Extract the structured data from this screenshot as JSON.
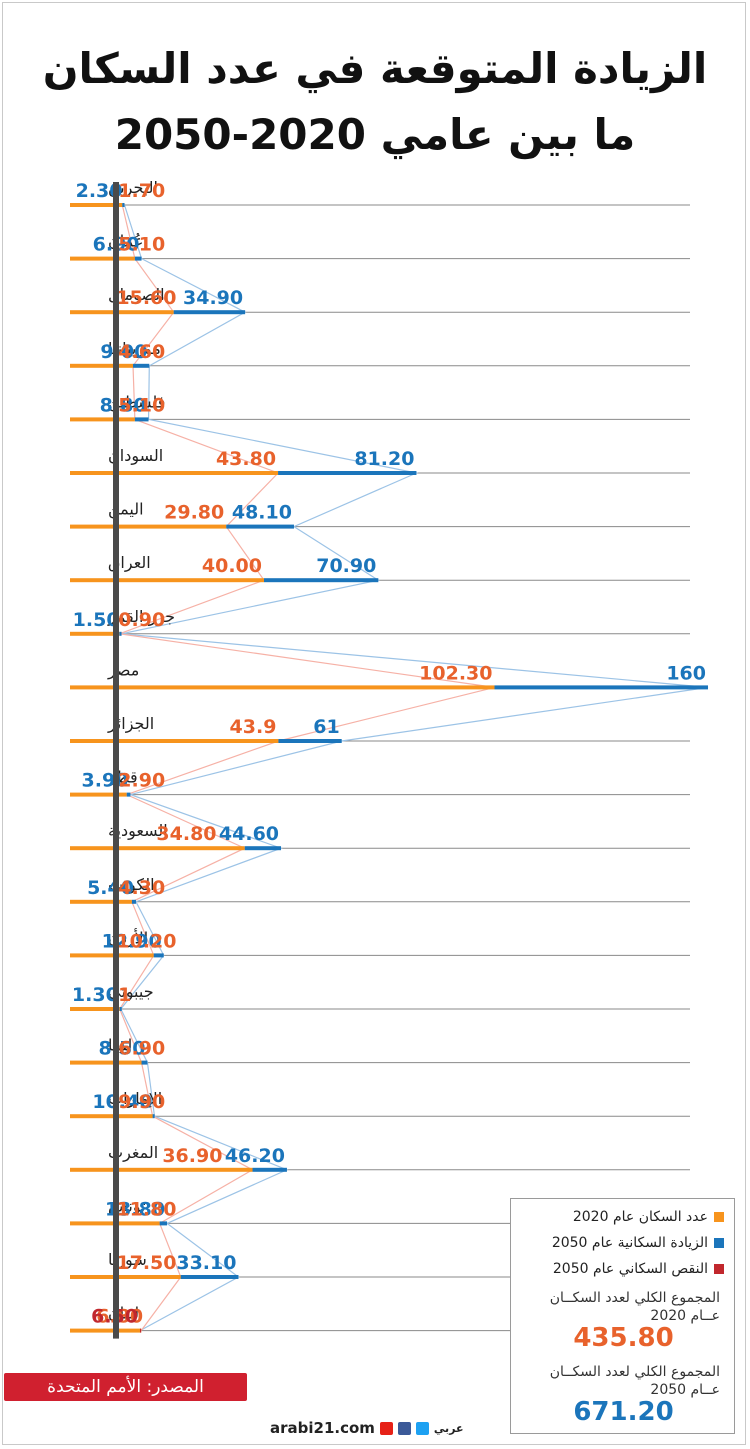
{
  "title": {
    "line1": "الزيادة المتوقعة في عدد السكان",
    "line2": "ما بين عامي 2020-2050"
  },
  "colors": {
    "pop2020": "#f7941d",
    "inc2050": "#1b75bb",
    "dec2050": "#c1272d",
    "label2020": "#e8622c"
  },
  "chart_data": {
    "type": "bar",
    "categories": [
      "البحرين",
      "عُمان",
      "الصومال",
      "موريتانيا",
      "فلسطين",
      "السودان",
      "اليمن",
      "العراق",
      "جزر القمر",
      "مصر",
      "الجزائر",
      "قطر",
      "السعودية",
      "الكويت",
      "الأردن",
      "جيبوتي",
      "ليبيا",
      "الإمارات",
      "المغرب",
      "تونس",
      "سوريا",
      "لبنان"
    ],
    "series": [
      {
        "name": "عدد السكان عام 2020",
        "values": [
          1.7,
          5.1,
          15.6,
          4.6,
          5.1,
          43.8,
          29.8,
          40.0,
          0.9,
          102.3,
          43.9,
          2.9,
          34.8,
          4.3,
          10.2,
          1,
          6.9,
          9.9,
          36.9,
          11.8,
          17.5,
          6.8
        ],
        "labels": [
          "1.70",
          "5.10",
          "15.60",
          "4.60",
          "5.10",
          "43.80",
          "29.80",
          "40.00",
          "0.90",
          "102.30",
          "43.9",
          "2.90",
          "34.80",
          "4.30",
          "10.20",
          "1",
          "6.90",
          "9.90",
          "36.90",
          "11.80",
          "17.50",
          "6.80"
        ]
      },
      {
        "name": "الزيادة السكانية عام 2050",
        "values": [
          2.3,
          6.9,
          34.9,
          9.0,
          8.8,
          81.2,
          48.1,
          70.9,
          1.5,
          160,
          61,
          3.9,
          44.6,
          5.4,
          12.9,
          1.3,
          8.5,
          10.4,
          46.2,
          13.8,
          33.1,
          null
        ],
        "labels": [
          "2.30",
          "6.90",
          "34.90",
          "9.00",
          "8.80",
          "81.20",
          "48.10",
          "70.90",
          "1.50",
          "160",
          "61",
          "3.90",
          "44.60",
          "5.40",
          "12.90",
          "1.30",
          "8.50",
          "10.40",
          "46.20",
          "13.80",
          "33.10",
          ""
        ]
      },
      {
        "name": "النقص السكاني عام 2050",
        "values": [
          null,
          null,
          null,
          null,
          null,
          null,
          null,
          null,
          null,
          null,
          null,
          null,
          null,
          null,
          null,
          null,
          null,
          null,
          null,
          null,
          null,
          6.5
        ],
        "labels": [
          "",
          "",
          "",
          "",
          "",
          "",
          "",
          "",
          "",
          "",
          "",
          "",
          "",
          "",
          "",
          "",
          "",
          "",
          "",
          "",
          "",
          "6.50"
        ]
      }
    ]
  },
  "legend": {
    "items": [
      {
        "label": "عدد السكان عام 2020",
        "color": "#f7941d"
      },
      {
        "label": "الزيادة السكانية عام 2050",
        "color": "#1b75bb"
      },
      {
        "label": "النقص السكاني عام 2050",
        "color": "#c1272d"
      }
    ],
    "total2020_label": "المجموع الكلي لعدد السكــان عــام 2020",
    "total2020_value": "435.80",
    "total2050_label": "المجموع الكلي لعدد السكــان عــام 2050",
    "total2050_value": "671.20"
  },
  "source": "المصدر: الأمم المتحدة",
  "footer": {
    "site": "arabi21.com",
    "brand": "عربي"
  }
}
